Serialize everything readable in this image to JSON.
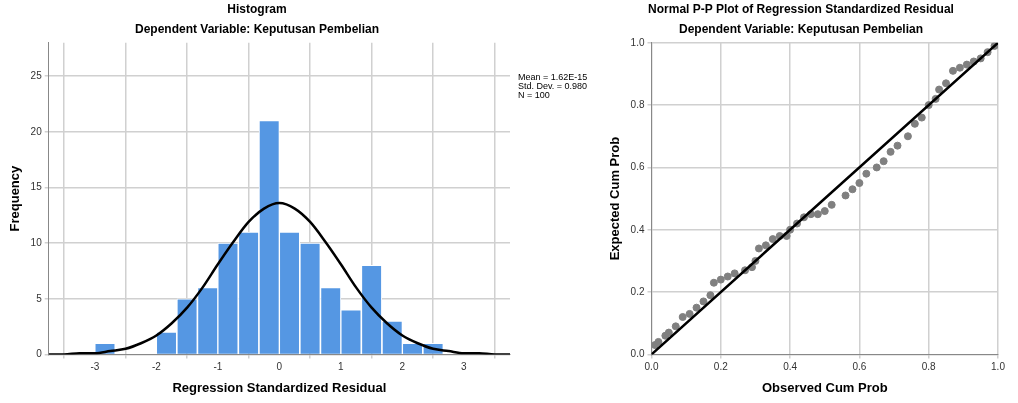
{
  "chart_data": [
    {
      "type": "histogram",
      "title": "Histogram",
      "subtitle": "Dependent Variable: Keputusan Pembelian",
      "xlabel": "Regression Standardized Residual",
      "ylabel": "Frequency",
      "bins": [
        -3,
        -2.67,
        -2.33,
        -2,
        -1.67,
        -1.33,
        -1,
        -0.67,
        -0.33,
        0,
        0.33,
        0.67,
        1,
        1.33,
        1.67,
        2,
        2.33,
        2.67
      ],
      "values": [
        1,
        0,
        0,
        2,
        5,
        6,
        10,
        11,
        21,
        11,
        10,
        6,
        4,
        8,
        3,
        1,
        1
      ],
      "color": "#5597e3",
      "series": [
        {
          "type": "line",
          "color": "#000000",
          "marker": "none",
          "line_style": "solid",
          "x": [
            -3.75,
            -3.5,
            -3.25,
            -3,
            -2.75,
            -2.5,
            -2.25,
            -2,
            -1.75,
            -1.5,
            -1.25,
            -1,
            -0.75,
            -0.5,
            -0.25,
            0,
            0.25,
            0.5,
            0.75,
            1,
            1.25,
            1.5,
            1.75,
            2,
            2.25,
            2.5,
            2.75,
            3,
            3.25,
            3.5,
            3.75
          ],
          "values": [
            0,
            0,
            0.1,
            0.1,
            0.3,
            0.5,
            1,
            1.7,
            2.8,
            4.2,
            6,
            8.1,
            10.1,
            11.9,
            13.1,
            13.6,
            13.1,
            11.9,
            10.1,
            8.1,
            6,
            4.2,
            2.8,
            1.7,
            1,
            0.5,
            0.3,
            0.1,
            0.1,
            0,
            0
          ]
        }
      ],
      "xlim": [
        -3.75,
        3.75
      ],
      "ylim": [
        0,
        28
      ],
      "xticks": [
        -3,
        -2,
        -1,
        0,
        1,
        2,
        3
      ],
      "yticks": [
        0,
        5,
        10,
        15,
        20,
        25
      ],
      "grid": true,
      "legend": false,
      "annotations": [
        "Mean = 1.62E-15",
        "Std. Dev. = 0.980",
        "N = 100"
      ]
    },
    {
      "type": "scatter",
      "title": "Normal P-P Plot of Regression Standardized Residual",
      "subtitle": "Dependent Variable: Keputusan Pembelian",
      "xlabel": "Observed Cum Prob",
      "ylabel": "Expected Cum Prob",
      "series": [
        {
          "type": "scatter",
          "color": "#808080",
          "marker": "circle",
          "x": [
            0.01,
            0.02,
            0.04,
            0.05,
            0.07,
            0.09,
            0.11,
            0.13,
            0.15,
            0.17,
            0.18,
            0.2,
            0.22,
            0.24,
            0.27,
            0.29,
            0.3,
            0.31,
            0.33,
            0.35,
            0.37,
            0.39,
            0.4,
            0.42,
            0.44,
            0.46,
            0.48,
            0.5,
            0.52,
            0.56,
            0.58,
            0.6,
            0.62,
            0.65,
            0.67,
            0.69,
            0.71,
            0.74,
            0.76,
            0.78,
            0.8,
            0.82,
            0.83,
            0.85,
            0.87,
            0.89,
            0.91,
            0.93,
            0.95,
            0.97,
            0.99
          ],
          "values": [
            0.03,
            0.04,
            0.06,
            0.07,
            0.09,
            0.12,
            0.13,
            0.15,
            0.17,
            0.19,
            0.23,
            0.24,
            0.25,
            0.26,
            0.27,
            0.28,
            0.3,
            0.34,
            0.35,
            0.37,
            0.38,
            0.38,
            0.4,
            0.42,
            0.44,
            0.45,
            0.45,
            0.46,
            0.48,
            0.51,
            0.53,
            0.55,
            0.58,
            0.6,
            0.62,
            0.65,
            0.67,
            0.7,
            0.74,
            0.76,
            0.8,
            0.82,
            0.85,
            0.87,
            0.91,
            0.92,
            0.93,
            0.94,
            0.95,
            0.97,
            0.99
          ]
        },
        {
          "type": "line",
          "color": "#000000",
          "marker": "none",
          "line_style": "solid",
          "x": [
            0,
            1
          ],
          "values": [
            0,
            1
          ]
        }
      ],
      "xlim": [
        0,
        1
      ],
      "ylim": [
        0,
        1
      ],
      "xticks": [
        {
          "value": 0,
          "label": "0.0"
        },
        {
          "value": 0.2,
          "label": "0.2"
        },
        {
          "value": 0.4,
          "label": "0.4"
        },
        {
          "value": 0.6,
          "label": "0.6"
        },
        {
          "value": 0.8,
          "label": "0.8"
        },
        {
          "value": 1,
          "label": "1.0"
        }
      ],
      "yticks": [
        {
          "value": 0,
          "label": "0.0"
        },
        {
          "value": 0.2,
          "label": "0.2"
        },
        {
          "value": 0.4,
          "label": "0.4"
        },
        {
          "value": 0.6,
          "label": "0.6"
        },
        {
          "value": 0.8,
          "label": "0.8"
        },
        {
          "value": 1,
          "label": "1.0"
        }
      ],
      "grid": true,
      "legend": false
    }
  ]
}
